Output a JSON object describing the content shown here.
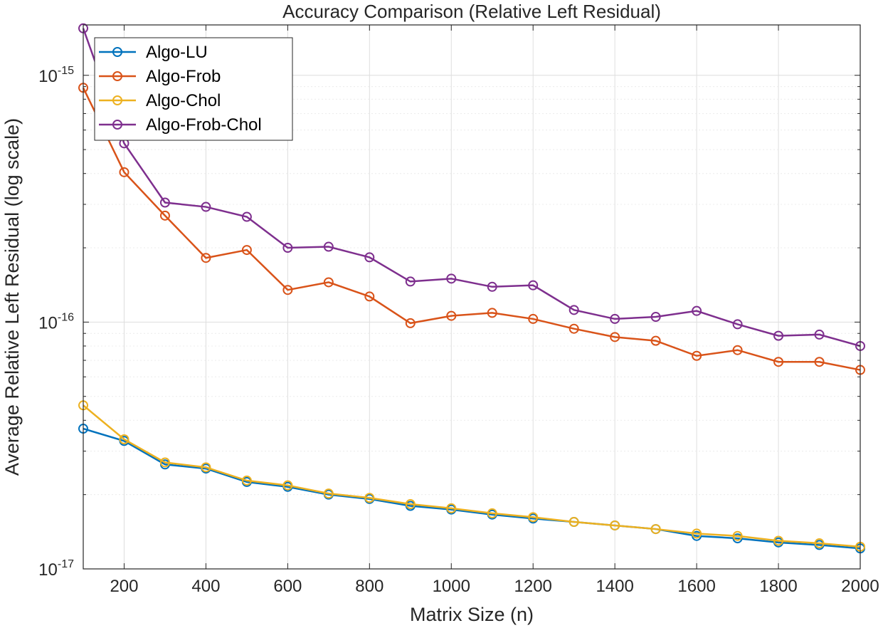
{
  "chart_data": {
    "type": "line",
    "title": "Accuracy Comparison (Relative Left Residual)",
    "xlabel": "Matrix Size (n)",
    "ylabel": "Average Relative Left Residual (log scale)",
    "xlim": [
      100,
      2000
    ],
    "ylim": [
      1e-17,
      1.6e-15
    ],
    "yscale": "log",
    "grid": true,
    "legend_position": "top-left",
    "x_ticks": [
      200,
      400,
      600,
      800,
      1000,
      1200,
      1400,
      1600,
      1800,
      2000
    ],
    "y_ticks": [
      {
        "base": "10",
        "exp": "-17",
        "value": 1e-17
      },
      {
        "base": "10",
        "exp": "-16",
        "value": 1e-16
      },
      {
        "base": "10",
        "exp": "-15",
        "value": 1e-15
      }
    ],
    "x": [
      100,
      200,
      300,
      400,
      500,
      600,
      700,
      800,
      900,
      1000,
      1100,
      1200,
      1300,
      1400,
      1500,
      1600,
      1700,
      1800,
      1900,
      2000
    ],
    "series": [
      {
        "name": "Algo-LU",
        "color": "#0072BD",
        "values": [
          3.7e-17,
          3.3e-17,
          2.65e-17,
          2.55e-17,
          2.25e-17,
          2.15e-17,
          2e-17,
          1.92e-17,
          1.8e-17,
          1.74e-17,
          1.66e-17,
          1.6e-17,
          1.55e-17,
          1.5e-17,
          1.45e-17,
          1.36e-17,
          1.33e-17,
          1.28e-17,
          1.25e-17,
          1.21e-17
        ]
      },
      {
        "name": "Algo-Frob",
        "color": "#D95319",
        "values": [
          8.9e-16,
          4.05e-16,
          2.7e-16,
          1.82e-16,
          1.96e-16,
          1.35e-16,
          1.45e-16,
          1.27e-16,
          9.9e-17,
          1.06e-16,
          1.09e-16,
          1.03e-16,
          9.4e-17,
          8.7e-17,
          8.4e-17,
          7.3e-17,
          7.7e-17,
          6.9e-17,
          6.9e-17,
          6.4e-17
        ]
      },
      {
        "name": "Algo-Chol",
        "color": "#EDB120",
        "values": [
          4.6e-17,
          3.35e-17,
          2.7e-17,
          2.58e-17,
          2.28e-17,
          2.18e-17,
          2.02e-17,
          1.94e-17,
          1.83e-17,
          1.76e-17,
          1.68e-17,
          1.62e-17,
          1.55e-17,
          1.5e-17,
          1.45e-17,
          1.39e-17,
          1.36e-17,
          1.3e-17,
          1.27e-17,
          1.23e-17
        ]
      },
      {
        "name": "Algo-Frob-Chol",
        "color": "#7E2F8E",
        "values": [
          1.55e-15,
          5.3e-16,
          3.05e-16,
          2.93e-16,
          2.67e-16,
          2e-16,
          2.02e-16,
          1.83e-16,
          1.46e-16,
          1.5e-16,
          1.39e-16,
          1.41e-16,
          1.12e-16,
          1.03e-16,
          1.05e-16,
          1.11e-16,
          9.8e-17,
          8.8e-17,
          8.9e-17,
          8e-17
        ]
      }
    ]
  }
}
